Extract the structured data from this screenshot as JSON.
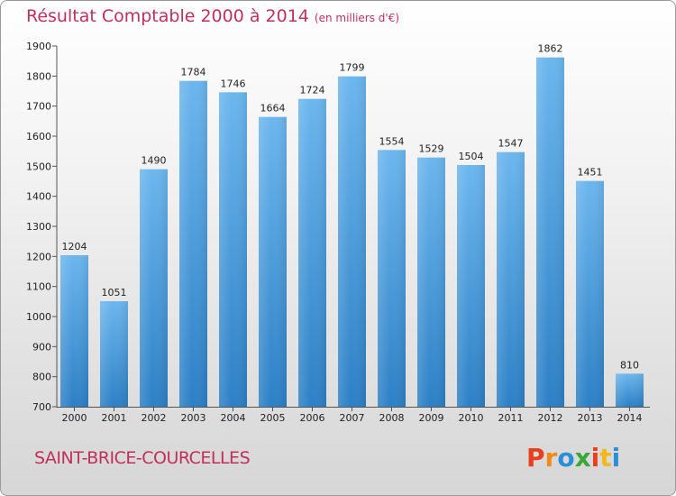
{
  "title": "Résultat Comptable 2000 à 2014",
  "subtitle": "(en milliers d'€)",
  "town": "SAINT-BRICE-COURCELLES",
  "logo": {
    "text": "Proxiti",
    "letters": [
      "P",
      "r",
      "o",
      "x",
      "i",
      "t",
      "i"
    ],
    "colors": [
      "#e8401c",
      "#f08a1c",
      "#2a8fd6",
      "#38a838",
      "#e8401c",
      "#f0b81c",
      "#2a8fd6"
    ]
  },
  "colors": {
    "title": "#c0305c",
    "bar_top": "#6cb6ee",
    "bar_bottom": "#2c80c6"
  },
  "chart_data": {
    "type": "bar",
    "title": "Résultat Comptable 2000 à 2014",
    "xlabel": "",
    "ylabel": "",
    "categories": [
      "2000",
      "2001",
      "2002",
      "2003",
      "2004",
      "2005",
      "2006",
      "2007",
      "2008",
      "2009",
      "2010",
      "2011",
      "2012",
      "2013",
      "2014"
    ],
    "values": [
      1204,
      1051,
      1490,
      1784,
      1746,
      1664,
      1724,
      1799,
      1554,
      1529,
      1504,
      1547,
      1862,
      1451,
      810
    ],
    "ylim": [
      700,
      1900
    ],
    "yticks": [
      700,
      800,
      900,
      1000,
      1100,
      1200,
      1300,
      1400,
      1500,
      1600,
      1700,
      1800,
      1900
    ],
    "grid": false,
    "data_labels": true
  }
}
